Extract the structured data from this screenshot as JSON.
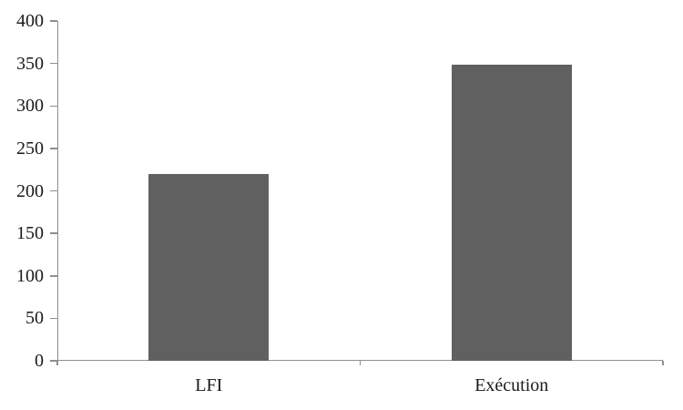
{
  "chart_data": {
    "type": "bar",
    "categories": [
      "LFI",
      "Exécution"
    ],
    "values": [
      220,
      348
    ],
    "title": "",
    "xlabel": "",
    "ylabel": "",
    "ylim": [
      0,
      400
    ],
    "yticks": [
      0,
      50,
      100,
      150,
      200,
      250,
      300,
      350,
      400
    ],
    "grid": false,
    "legend": false,
    "bar_color": "#606060",
    "axis_color": "#8f8f8f",
    "text_color": "#1a1a1a",
    "background_color": "#ffffff"
  }
}
